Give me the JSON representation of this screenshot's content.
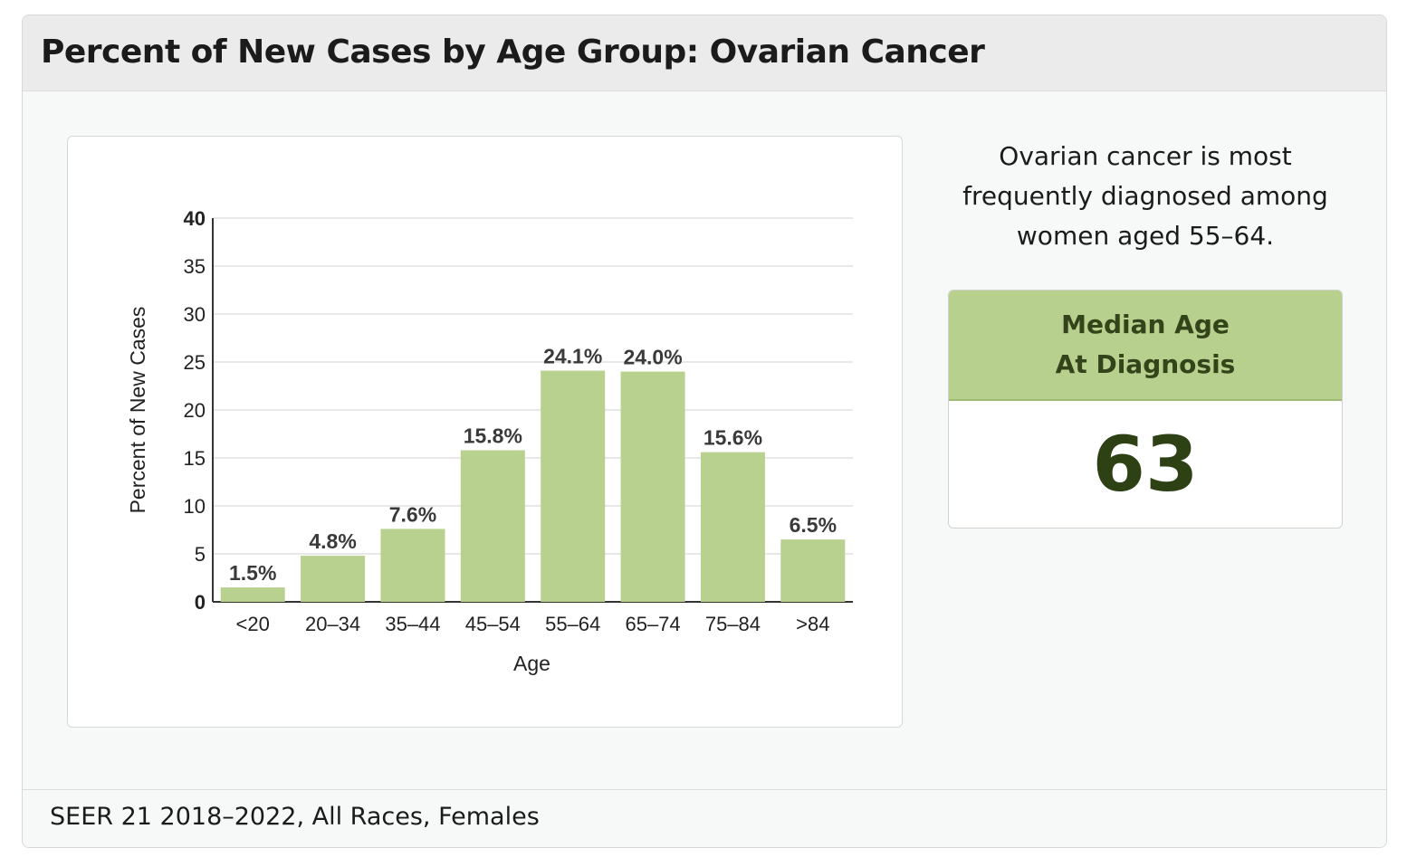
{
  "header": {
    "title": "Percent of New Cases by Age Group: Ovarian Cancer"
  },
  "summary": {
    "lines": [
      "Ovarian cancer is most",
      "frequently diagnosed among",
      "women aged 55–64."
    ]
  },
  "median_card": {
    "label_lines": [
      "Median Age",
      "At Diagnosis"
    ],
    "value": "63"
  },
  "footer": {
    "source": "SEER 21 2018–2022, All Races, Females"
  },
  "colors": {
    "bar": "#b8d18f",
    "median_header": "#b8d08e",
    "median_text": "#2e4115"
  },
  "chart_data": {
    "type": "bar",
    "categories": [
      "<20",
      "20–34",
      "35–44",
      "45–54",
      "55–64",
      "65–74",
      "75–84",
      ">84"
    ],
    "values": [
      1.5,
      4.8,
      7.6,
      15.8,
      24.1,
      24.0,
      15.6,
      6.5
    ],
    "data_labels": [
      "1.5%",
      "4.8%",
      "7.6%",
      "15.8%",
      "24.1%",
      "24.0%",
      "15.6%",
      "6.5%"
    ],
    "xlabel": "Age",
    "ylabel": "Percent of New Cases",
    "ylim": [
      0,
      40
    ],
    "yticks": [
      0,
      5,
      10,
      15,
      20,
      25,
      30,
      35,
      40
    ],
    "grid": true,
    "legend": "none"
  }
}
